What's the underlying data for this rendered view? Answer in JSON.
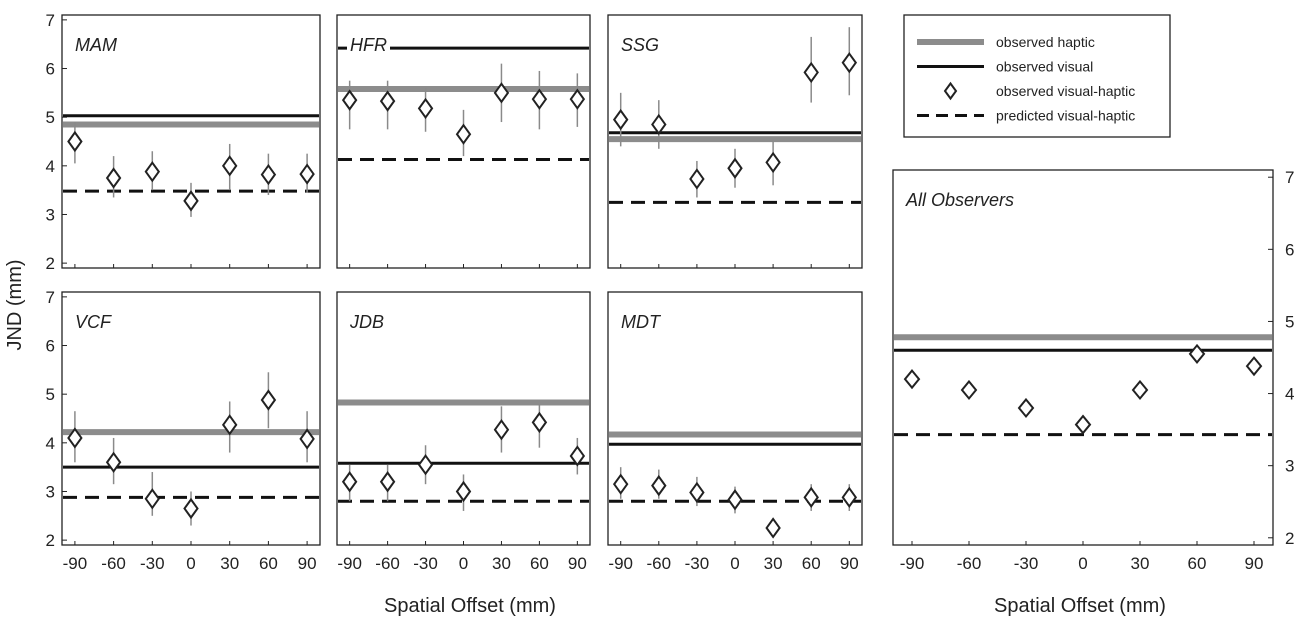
{
  "chart_data": [
    {
      "type": "scatter",
      "panel_label": "MAM",
      "x_ticks": [
        "-90",
        "-60",
        "-30",
        "0",
        "30",
        "60",
        "90"
      ],
      "y_ticks": [
        "2",
        "3",
        "4",
        "5",
        "6",
        "7"
      ],
      "xlim": [
        -100,
        100
      ],
      "ylim": [
        1.9,
        7.1
      ],
      "observed_haptic": 4.85,
      "observed_visual": 5.03,
      "predicted_visual_haptic": 3.48,
      "observed_visual_haptic": [
        {
          "x": -90,
          "y": 4.5,
          "lo": 4.05,
          "hi": 4.9
        },
        {
          "x": -60,
          "y": 3.75,
          "lo": 3.35,
          "hi": 4.2
        },
        {
          "x": -30,
          "y": 3.88,
          "lo": 3.5,
          "hi": 4.3
        },
        {
          "x": 0,
          "y": 3.28,
          "lo": 2.95,
          "hi": 3.65
        },
        {
          "x": 30,
          "y": 4.0,
          "lo": 3.5,
          "hi": 4.45
        },
        {
          "x": 60,
          "y": 3.82,
          "lo": 3.4,
          "hi": 4.25
        },
        {
          "x": 90,
          "y": 3.83,
          "lo": 3.45,
          "hi": 4.25
        }
      ]
    },
    {
      "type": "scatter",
      "panel_label": "HFR",
      "x_ticks": [
        "-90",
        "-60",
        "-30",
        "0",
        "30",
        "60",
        "90"
      ],
      "y_ticks": [],
      "xlim": [
        -100,
        100
      ],
      "ylim": [
        1.9,
        7.1
      ],
      "observed_haptic": 5.58,
      "observed_visual": 6.42,
      "predicted_visual_haptic": 4.13,
      "observed_visual_haptic": [
        {
          "x": -90,
          "y": 5.35,
          "lo": 4.75,
          "hi": 5.75
        },
        {
          "x": -60,
          "y": 5.33,
          "lo": 4.75,
          "hi": 5.75
        },
        {
          "x": -30,
          "y": 5.18,
          "lo": 4.7,
          "hi": 5.6
        },
        {
          "x": 0,
          "y": 4.65,
          "lo": 4.2,
          "hi": 5.15
        },
        {
          "x": 30,
          "y": 5.5,
          "lo": 4.9,
          "hi": 6.1
        },
        {
          "x": 60,
          "y": 5.37,
          "lo": 4.75,
          "hi": 5.95
        },
        {
          "x": 90,
          "y": 5.37,
          "lo": 4.8,
          "hi": 5.9
        }
      ]
    },
    {
      "type": "scatter",
      "panel_label": "SSG",
      "x_ticks": [
        "-90",
        "-60",
        "-30",
        "0",
        "30",
        "60",
        "90"
      ],
      "y_ticks": [],
      "xlim": [
        -100,
        100
      ],
      "ylim": [
        1.9,
        7.1
      ],
      "observed_haptic": 4.55,
      "observed_visual": 4.68,
      "predicted_visual_haptic": 3.25,
      "observed_visual_haptic": [
        {
          "x": -90,
          "y": 4.95,
          "lo": 4.4,
          "hi": 5.5
        },
        {
          "x": -60,
          "y": 4.85,
          "lo": 4.35,
          "hi": 5.35
        },
        {
          "x": -30,
          "y": 3.73,
          "lo": 3.35,
          "hi": 4.1
        },
        {
          "x": 0,
          "y": 3.95,
          "lo": 3.55,
          "hi": 4.35
        },
        {
          "x": 30,
          "y": 4.07,
          "lo": 3.6,
          "hi": 4.5
        },
        {
          "x": 60,
          "y": 5.92,
          "lo": 5.3,
          "hi": 6.65
        },
        {
          "x": 90,
          "y": 6.12,
          "lo": 5.45,
          "hi": 6.85
        }
      ]
    },
    {
      "type": "scatter",
      "panel_label": "VCF",
      "x_ticks": [
        "-90",
        "-60",
        "-30",
        "0",
        "30",
        "60",
        "90"
      ],
      "y_ticks": [
        "2",
        "3",
        "4",
        "5",
        "6",
        "7"
      ],
      "xlim": [
        -100,
        100
      ],
      "ylim": [
        1.9,
        7.1
      ],
      "observed_haptic": 4.22,
      "observed_visual": 3.5,
      "predicted_visual_haptic": 2.88,
      "observed_visual_haptic": [
        {
          "x": -90,
          "y": 4.1,
          "lo": 3.6,
          "hi": 4.65
        },
        {
          "x": -60,
          "y": 3.6,
          "lo": 3.15,
          "hi": 4.1
        },
        {
          "x": -30,
          "y": 2.85,
          "lo": 2.5,
          "hi": 3.4
        },
        {
          "x": 0,
          "y": 2.65,
          "lo": 2.3,
          "hi": 3.0
        },
        {
          "x": 30,
          "y": 4.37,
          "lo": 3.8,
          "hi": 4.85
        },
        {
          "x": 60,
          "y": 4.88,
          "lo": 4.3,
          "hi": 5.45
        },
        {
          "x": 90,
          "y": 4.08,
          "lo": 3.6,
          "hi": 4.65
        }
      ]
    },
    {
      "type": "scatter",
      "panel_label": "JDB",
      "x_ticks": [
        "-90",
        "-60",
        "-30",
        "0",
        "30",
        "60",
        "90"
      ],
      "y_ticks": [],
      "xlim": [
        -100,
        100
      ],
      "ylim": [
        1.9,
        7.1
      ],
      "observed_haptic": 4.83,
      "observed_visual": 3.58,
      "predicted_visual_haptic": 2.8,
      "observed_visual_haptic": [
        {
          "x": -90,
          "y": 3.2,
          "lo": 2.8,
          "hi": 3.55
        },
        {
          "x": -60,
          "y": 3.2,
          "lo": 2.8,
          "hi": 3.55
        },
        {
          "x": -30,
          "y": 3.55,
          "lo": 3.15,
          "hi": 3.95
        },
        {
          "x": 0,
          "y": 3.0,
          "lo": 2.6,
          "hi": 3.35
        },
        {
          "x": 30,
          "y": 4.27,
          "lo": 3.8,
          "hi": 4.75
        },
        {
          "x": 60,
          "y": 4.42,
          "lo": 3.9,
          "hi": 4.8
        },
        {
          "x": 90,
          "y": 3.73,
          "lo": 3.35,
          "hi": 4.1
        }
      ]
    },
    {
      "type": "scatter",
      "panel_label": "MDT",
      "x_ticks": [
        "-90",
        "-60",
        "-30",
        "0",
        "30",
        "60",
        "90"
      ],
      "y_ticks": [],
      "xlim": [
        -100,
        100
      ],
      "ylim": [
        1.9,
        7.1
      ],
      "observed_haptic": 4.17,
      "observed_visual": 3.97,
      "predicted_visual_haptic": 2.8,
      "observed_visual_haptic": [
        {
          "x": -90,
          "y": 3.15,
          "lo": 2.85,
          "hi": 3.5
        },
        {
          "x": -60,
          "y": 3.12,
          "lo": 2.85,
          "hi": 3.45
        },
        {
          "x": -30,
          "y": 2.98,
          "lo": 2.7,
          "hi": 3.3
        },
        {
          "x": 0,
          "y": 2.83,
          "lo": 2.55,
          "hi": 3.1
        },
        {
          "x": 30,
          "y": 2.25,
          "lo": 2.1,
          "hi": 2.4
        },
        {
          "x": 60,
          "y": 2.88,
          "lo": 2.6,
          "hi": 3.15
        },
        {
          "x": 90,
          "y": 2.88,
          "lo": 2.6,
          "hi": 3.15
        }
      ]
    },
    {
      "type": "scatter",
      "panel_label": "All Observers",
      "x_ticks": [
        "-90",
        "-60",
        "-30",
        "0",
        "30",
        "60",
        "90"
      ],
      "y_ticks": [
        "2",
        "3",
        "4",
        "5",
        "6",
        "7"
      ],
      "xlim": [
        -100,
        100
      ],
      "ylim": [
        1.9,
        7.1
      ],
      "observed_haptic": 4.78,
      "observed_visual": 4.6,
      "predicted_visual_haptic": 3.43,
      "observed_visual_haptic": [
        {
          "x": -90,
          "y": 4.2
        },
        {
          "x": -60,
          "y": 4.05
        },
        {
          "x": -30,
          "y": 3.8
        },
        {
          "x": 0,
          "y": 3.57
        },
        {
          "x": 30,
          "y": 4.05
        },
        {
          "x": 60,
          "y": 4.55
        },
        {
          "x": 90,
          "y": 4.38
        }
      ]
    }
  ],
  "ylabel": "JND (mm)",
  "xlabel": "Spatial Offset (mm)",
  "legend": {
    "placement": "top-right",
    "entries": [
      {
        "label": "observed haptic",
        "style": "thick-gray-line"
      },
      {
        "label": "observed visual",
        "style": "black-line"
      },
      {
        "label": "observed visual-haptic",
        "style": "diamond"
      },
      {
        "label": "predicted visual-haptic",
        "style": "dashed-line"
      }
    ]
  },
  "colors": {
    "haptic": "#8c8c8c",
    "visual": "#111111",
    "predicted": "#111111",
    "marker_edge": "#222222",
    "error_bar": "#8a8a8a"
  }
}
